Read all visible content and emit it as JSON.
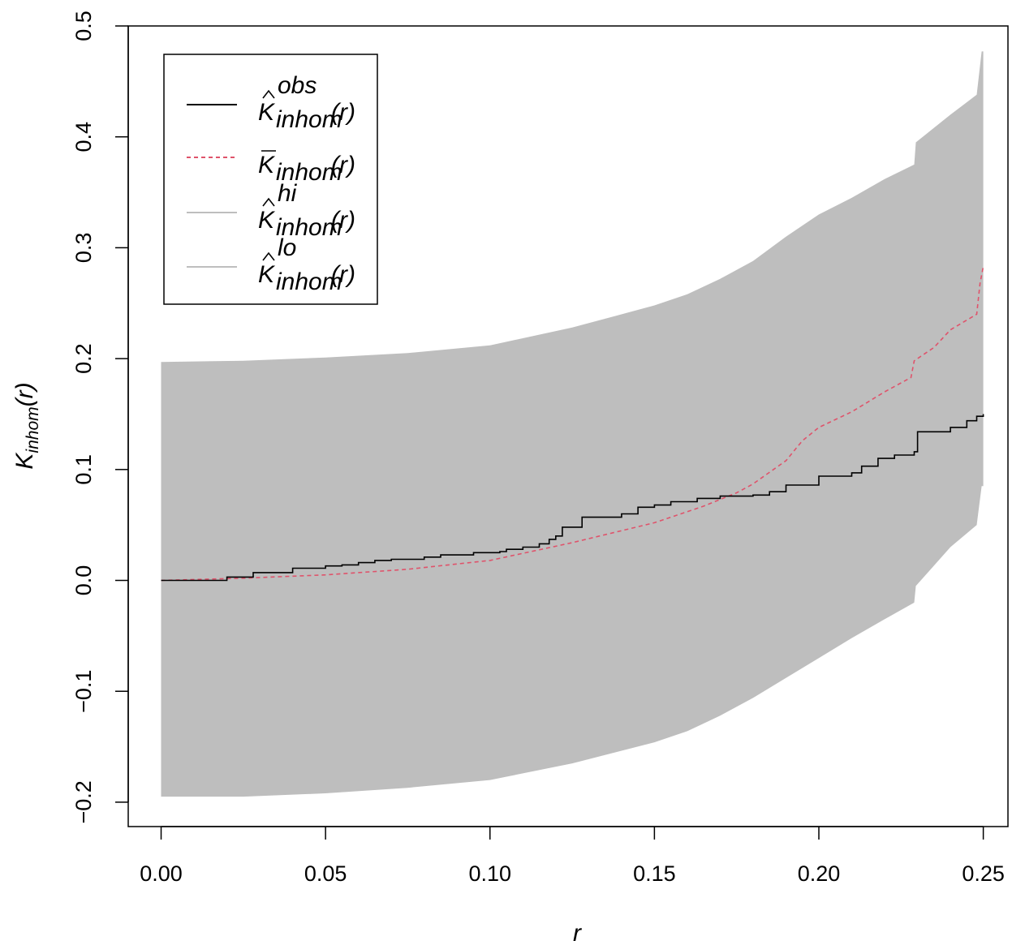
{
  "chart_data": {
    "type": "area",
    "title": "",
    "xlabel": "r",
    "ylabel": {
      "main": "K",
      "sub": "inhom",
      "arg": "(r)"
    },
    "xlim": [
      -0.01,
      0.2575
    ],
    "ylim": [
      -0.222,
      0.5
    ],
    "xticks": [
      0.0,
      0.05,
      0.1,
      0.15,
      0.2,
      0.25
    ],
    "xtick_labels": [
      "0.00",
      "0.05",
      "0.10",
      "0.15",
      "0.20",
      "0.25"
    ],
    "yticks": [
      -0.2,
      -0.1,
      0.0,
      0.1,
      0.2,
      0.3,
      0.4,
      0.5
    ],
    "ytick_labels": [
      "−0.2",
      "−0.1",
      "0.0",
      "0.1",
      "0.2",
      "0.3",
      "0.4",
      "0.5"
    ],
    "grid": false,
    "legend_position": "top-left",
    "legend": [
      {
        "key": "obs",
        "main": "K",
        "accent": "^",
        "sup": "obs",
        "sub": "inhom",
        "arg": "(r)",
        "color": "#000000",
        "dash": "solid"
      },
      {
        "key": "theo",
        "main": "K",
        "accent": "bar",
        "sup": "",
        "sub": "inhom",
        "arg": "(r)",
        "color": "#DF536B",
        "dash": "dashed"
      },
      {
        "key": "hi",
        "main": "K",
        "accent": "^",
        "sup": "hi",
        "sub": "inhom",
        "arg": "(r)",
        "color": "#BEBEBE",
        "dash": "solid"
      },
      {
        "key": "lo",
        "main": "K",
        "accent": "^",
        "sup": "lo",
        "sub": "inhom",
        "arg": "(r)",
        "color": "#BEBEBE",
        "dash": "solid"
      }
    ],
    "envelope": {
      "x": [
        0.0,
        0.025,
        0.05,
        0.075,
        0.1,
        0.125,
        0.15,
        0.16,
        0.17,
        0.18,
        0.19,
        0.2,
        0.21,
        0.22,
        0.229,
        0.2295,
        0.24,
        0.248,
        0.2495,
        0.25
      ],
      "hi": [
        0.197,
        0.198,
        0.201,
        0.205,
        0.212,
        0.228,
        0.248,
        0.258,
        0.272,
        0.288,
        0.31,
        0.33,
        0.345,
        0.362,
        0.375,
        0.395,
        0.42,
        0.438,
        0.477,
        0.477
      ],
      "lo": [
        -0.195,
        -0.195,
        -0.192,
        -0.187,
        -0.18,
        -0.165,
        -0.146,
        -0.136,
        -0.122,
        -0.106,
        -0.088,
        -0.07,
        -0.052,
        -0.035,
        -0.02,
        -0.005,
        0.03,
        0.05,
        0.085,
        0.085
      ]
    },
    "series": [
      {
        "name": "obs",
        "color": "#000000",
        "x": [
          0.0,
          0.02,
          0.028,
          0.04,
          0.05,
          0.055,
          0.06,
          0.065,
          0.07,
          0.08,
          0.085,
          0.095,
          0.103,
          0.105,
          0.11,
          0.115,
          0.118,
          0.12,
          0.122,
          0.128,
          0.14,
          0.145,
          0.15,
          0.155,
          0.163,
          0.17,
          0.18,
          0.185,
          0.19,
          0.2,
          0.21,
          0.213,
          0.218,
          0.223,
          0.229,
          0.23,
          0.24,
          0.245,
          0.248,
          0.25
        ],
        "y": [
          0.0,
          0.003,
          0.007,
          0.011,
          0.013,
          0.014,
          0.016,
          0.018,
          0.019,
          0.021,
          0.023,
          0.025,
          0.026,
          0.028,
          0.03,
          0.033,
          0.037,
          0.04,
          0.048,
          0.057,
          0.06,
          0.066,
          0.068,
          0.071,
          0.074,
          0.076,
          0.077,
          0.08,
          0.086,
          0.094,
          0.097,
          0.103,
          0.11,
          0.113,
          0.116,
          0.134,
          0.138,
          0.144,
          0.148,
          0.15
        ]
      },
      {
        "name": "theo",
        "color": "#DF536B",
        "x": [
          0.0,
          0.025,
          0.05,
          0.075,
          0.1,
          0.125,
          0.15,
          0.165,
          0.175,
          0.18,
          0.19,
          0.195,
          0.2,
          0.21,
          0.22,
          0.228,
          0.229,
          0.235,
          0.24,
          0.248,
          0.249,
          0.25
        ],
        "y": [
          0.0,
          0.002,
          0.005,
          0.01,
          0.018,
          0.034,
          0.052,
          0.067,
          0.079,
          0.087,
          0.108,
          0.126,
          0.138,
          0.152,
          0.17,
          0.183,
          0.198,
          0.21,
          0.226,
          0.24,
          0.268,
          0.283
        ]
      }
    ]
  }
}
